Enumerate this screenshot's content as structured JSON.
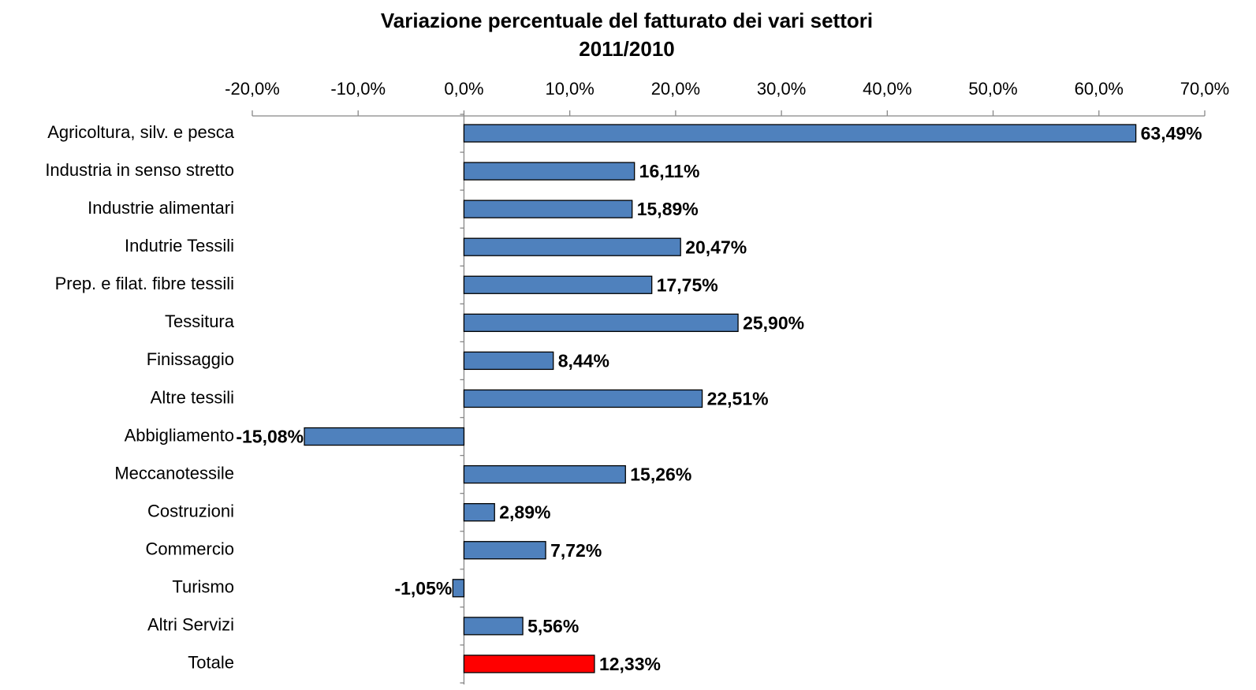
{
  "chart_data": {
    "type": "hbar",
    "title": "Variazione percentuale del fatturato dei vari settori",
    "subtitle": "2011/2010",
    "categories": [
      "Agricoltura, silv. e pesca",
      "Industria in senso stretto",
      "Industrie alimentari",
      "Indutrie Tessili",
      "Prep. e filat. fibre tessili",
      "Tessitura",
      "Finissaggio",
      "Altre tessili",
      "Abbigliamento",
      "Meccanotessile",
      "Costruzioni",
      "Commercio",
      "Turismo",
      "Altri Servizi",
      "Totale"
    ],
    "values": [
      63.49,
      16.11,
      15.89,
      20.47,
      17.75,
      25.9,
      8.44,
      22.51,
      -15.08,
      15.26,
      2.89,
      7.72,
      -1.05,
      5.56,
      12.33
    ],
    "value_labels": [
      "63,49%",
      "16,11%",
      "15,89%",
      "20,47%",
      "17,75%",
      "25,90%",
      "8,44%",
      "22,51%",
      "-15,08%",
      "15,26%",
      "2,89%",
      "7,72%",
      "-1,05%",
      "5,56%",
      "12,33%"
    ],
    "colors": [
      "#4f81bd",
      "#4f81bd",
      "#4f81bd",
      "#4f81bd",
      "#4f81bd",
      "#4f81bd",
      "#4f81bd",
      "#4f81bd",
      "#4f81bd",
      "#4f81bd",
      "#4f81bd",
      "#4f81bd",
      "#4f81bd",
      "#4f81bd",
      "#ff0000"
    ],
    "xlim": [
      -20,
      70
    ],
    "xticks": [
      {
        "value": -20,
        "label": "-20,0%"
      },
      {
        "value": -10,
        "label": "-10,0%"
      },
      {
        "value": 0,
        "label": "0,0%"
      },
      {
        "value": 10,
        "label": "10,0%"
      },
      {
        "value": 20,
        "label": "20,0%"
      },
      {
        "value": 30,
        "label": "30,0%"
      },
      {
        "value": 40,
        "label": "40,0%"
      },
      {
        "value": 50,
        "label": "50,0%"
      },
      {
        "value": 60,
        "label": "60,0%"
      },
      {
        "value": 70,
        "label": "70,0%"
      }
    ]
  }
}
